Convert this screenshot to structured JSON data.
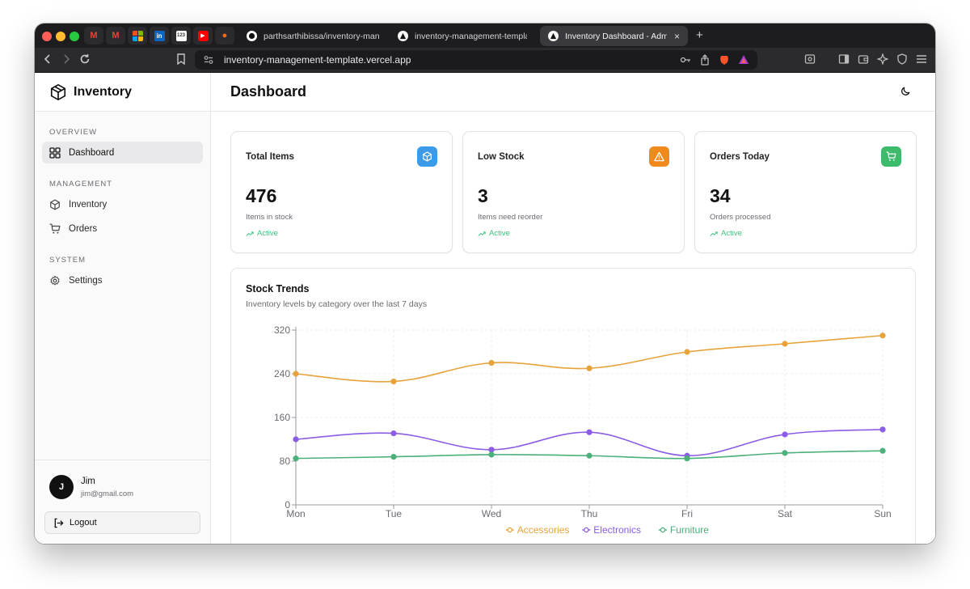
{
  "browser": {
    "tabs": [
      {
        "title": "parthsarthibissa/inventory-manage",
        "active": false
      },
      {
        "title": "inventory-management-template",
        "active": false
      },
      {
        "title": "Inventory Dashboard - Admin",
        "active": true
      }
    ],
    "url": "inventory-management-template.vercel.app",
    "new_tab": "+",
    "close": "×"
  },
  "sidebar": {
    "brand": "Inventory",
    "sections": [
      {
        "label": "OVERVIEW",
        "items": [
          {
            "label": "Dashboard",
            "icon": "grid-icon",
            "active": true
          }
        ]
      },
      {
        "label": "MANAGEMENT",
        "items": [
          {
            "label": "Inventory",
            "icon": "box-icon"
          },
          {
            "label": "Orders",
            "icon": "cart-icon"
          }
        ]
      },
      {
        "label": "SYSTEM",
        "items": [
          {
            "label": "Settings",
            "icon": "gear-icon"
          }
        ]
      }
    ],
    "user": {
      "initial": "J",
      "name": "Jim",
      "email": "jim@gmail.com"
    },
    "logout_label": "Logout"
  },
  "header": {
    "title": "Dashboard"
  },
  "cards": [
    {
      "title": "Total Items",
      "value": "476",
      "sub": "Items in stock",
      "status": "Active",
      "icon": "box-icon",
      "color": "#3b9be8"
    },
    {
      "title": "Low Stock",
      "value": "3",
      "sub": "Items need reorder",
      "status": "Active",
      "icon": "warning-icon",
      "color": "#f08a1c"
    },
    {
      "title": "Orders Today",
      "value": "34",
      "sub": "Orders processed",
      "status": "Active",
      "icon": "cart-icon",
      "color": "#3dbb6c"
    }
  ],
  "chart_panel": {
    "title": "Stock Trends",
    "subtitle": "Inventory levels by category over the last 7 days"
  },
  "chart_data": {
    "type": "line",
    "x": [
      "Mon",
      "Tue",
      "Wed",
      "Thu",
      "Fri",
      "Sat",
      "Sun"
    ],
    "ylim": [
      0,
      320
    ],
    "yticks": [
      0,
      80,
      160,
      240,
      320
    ],
    "grid": true,
    "legend": "bottom-center",
    "series": [
      {
        "name": "Accessories",
        "color": "#e8a23a",
        "values": [
          240,
          226,
          260,
          250,
          280,
          295,
          310
        ]
      },
      {
        "name": "Electronics",
        "color": "#8b5ce6",
        "values": [
          120,
          131,
          101,
          133,
          90,
          129,
          138
        ]
      },
      {
        "name": "Furniture",
        "color": "#4cb07a",
        "values": [
          85,
          88,
          92,
          90,
          85,
          95,
          99
        ]
      }
    ]
  }
}
